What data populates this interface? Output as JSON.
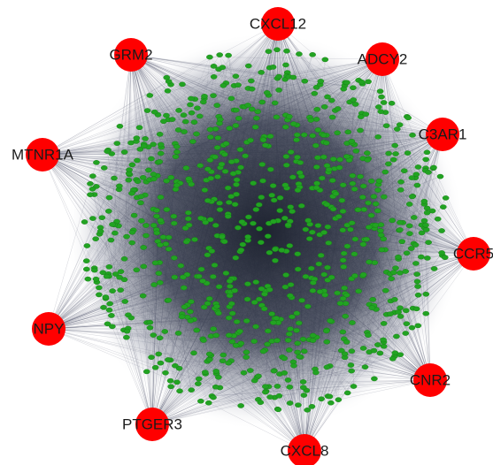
{
  "network": {
    "hubs": [
      {
        "id": "CXCL12",
        "label": "CXCL12",
        "color": "#ff0000"
      },
      {
        "id": "ADCY2",
        "label": "ADCY2",
        "color": "#ff0000"
      },
      {
        "id": "C3AR1",
        "label": "C3AR1",
        "color": "#ff0000"
      },
      {
        "id": "CCR5",
        "label": "CCR5",
        "color": "#ff0000"
      },
      {
        "id": "CNR2",
        "label": "CNR2",
        "color": "#ff0000"
      },
      {
        "id": "CXCL8",
        "label": "CXCL8",
        "color": "#ff0000"
      },
      {
        "id": "PTGER3",
        "label": "PTGER3",
        "color": "#ff0000"
      },
      {
        "id": "NPY",
        "label": "NPY",
        "color": "#ff0000"
      },
      {
        "id": "MTNR1A",
        "label": "MTNR1A",
        "color": "#ff0000"
      },
      {
        "id": "GRM2",
        "label": "GRM2",
        "color": "#ff0000"
      }
    ],
    "hub_node_color": "#ff0000",
    "leaf_node_color": "#22a322",
    "edge_color": "#4a5066",
    "core_color": "#2c3140"
  }
}
